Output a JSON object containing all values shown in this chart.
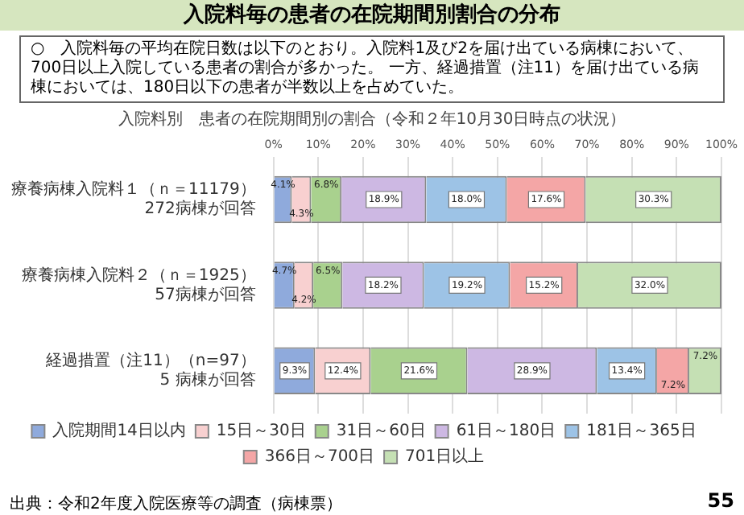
{
  "chart_data": {
    "type": "bar",
    "orientation": "horizontal",
    "stacked": true,
    "title": "入院料毎の患者の在院期間別割合の分布",
    "subtitle": "入院料別　患者の在院期間別の割合（令和２年10月30日時点の状況）",
    "annotations": [
      "○　入院料毎の平均在院日数は以下のとおり。入院料1及び2を届け出ている病棟において、700日以上入院している患者の割合が多かった。 一方、経過措置（注11）を届け出ている病棟においては、180日以下の患者が半数以上を占めていた。",
      "出典：令和2年度入院医療等の調査（病棟票）",
      "55"
    ],
    "categories": [
      "療養病棟入院料１（ｎ＝11179）\n272病棟が回答",
      "療養病棟入院料２（ｎ＝1925）\n57病棟が回答",
      "経過措置（注11）（n=97）\n5 病棟が回答"
    ],
    "xlim": [
      0,
      100
    ],
    "xticks": [
      {
        "value": 0,
        "label": "0%"
      },
      {
        "value": 10,
        "label": "10%"
      },
      {
        "value": 20,
        "label": "20%"
      },
      {
        "value": 30,
        "label": "30%"
      },
      {
        "value": 40,
        "label": "40%"
      },
      {
        "value": 50,
        "label": "50%"
      },
      {
        "value": 60,
        "label": "60%"
      },
      {
        "value": 70,
        "label": "70%"
      },
      {
        "value": 80,
        "label": "80%"
      },
      {
        "value": 90,
        "label": "90%"
      },
      {
        "value": 100,
        "label": "100%"
      }
    ],
    "grid": "x",
    "legend": "bottom",
    "series": [
      {
        "name": "入院期間14日以内",
        "color": "#8faadc",
        "values": [
          4.1,
          4.7,
          9.3
        ],
        "value_labels": [
          "4.1%",
          "4.7%",
          "9.3%"
        ]
      },
      {
        "name": "15日～30日",
        "color": "#f8d0d0",
        "values": [
          4.3,
          4.2,
          12.4
        ],
        "value_labels": [
          "4.3%",
          "4.2%",
          "12.4%"
        ]
      },
      {
        "name": "31日～60日",
        "color": "#a9d18e",
        "values": [
          6.8,
          6.5,
          21.6
        ],
        "value_labels": [
          "6.8%",
          "6.5%",
          "21.6%"
        ]
      },
      {
        "name": "61日～180日",
        "color": "#cdb8e3",
        "values": [
          18.9,
          18.2,
          28.9
        ],
        "value_labels": [
          "18.9%",
          "18.2%",
          "28.9%"
        ]
      },
      {
        "name": "181日～365日",
        "color": "#9dc3e6",
        "values": [
          18.0,
          19.2,
          13.4
        ],
        "value_labels": [
          "18.0%",
          "19.2%",
          "13.4%"
        ]
      },
      {
        "name": "366日～700日",
        "color": "#f4a6a6",
        "values": [
          17.6,
          15.2,
          7.2
        ],
        "value_labels": [
          "17.6%",
          "15.2%",
          "7.2%"
        ]
      },
      {
        "name": "701日以上",
        "color": "#c5e0b4",
        "values": [
          30.3,
          32.0,
          7.2
        ],
        "value_labels": [
          "30.3%",
          "32.0%",
          "7.2%"
        ]
      }
    ]
  }
}
